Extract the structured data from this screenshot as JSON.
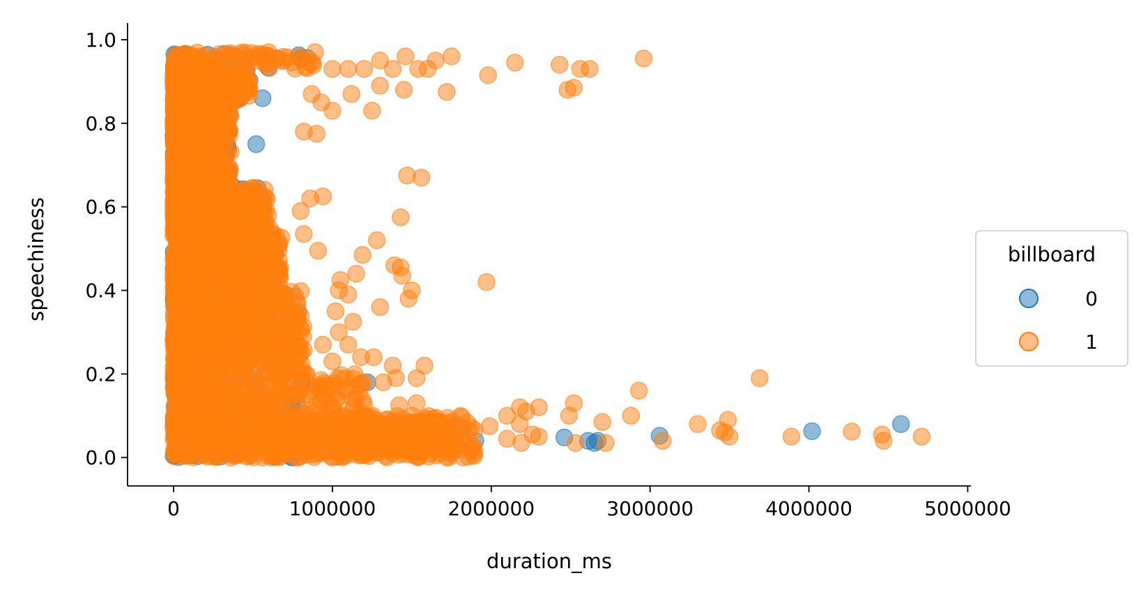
{
  "chart_data": {
    "type": "scatter",
    "title": "",
    "xlabel": "duration_ms",
    "ylabel": "speechiness",
    "xlim": [
      -290000,
      5020000
    ],
    "ylim": [
      -0.068,
      1.04
    ],
    "xticks": [
      0,
      1000000,
      2000000,
      3000000,
      4000000,
      5000000
    ],
    "xtick_labels": [
      "0",
      "1000000",
      "2000000",
      "3000000",
      "4000000",
      "5000000"
    ],
    "yticks": [
      0.0,
      0.2,
      0.4,
      0.6,
      0.8,
      1.0
    ],
    "ytick_labels": [
      "0.0",
      "0.2",
      "0.4",
      "0.6",
      "0.8",
      "1.0"
    ],
    "grid": false,
    "legend": {
      "title": "billboard",
      "placement": "center-right outside"
    },
    "marker_alpha": 0.5,
    "series": [
      {
        "name": "0",
        "color": "#1f77b4",
        "points": [
          [
            350000,
            0.96
          ],
          [
            650000,
            0.955
          ],
          [
            800000,
            0.955
          ],
          [
            520000,
            0.75
          ],
          [
            560000,
            0.86
          ],
          [
            1220000,
            0.18
          ],
          [
            1820000,
            0.07
          ],
          [
            1900000,
            0.04
          ],
          [
            2460000,
            0.048
          ],
          [
            2610000,
            0.04
          ],
          [
            2650000,
            0.035
          ],
          [
            2670000,
            0.04
          ],
          [
            3060000,
            0.052
          ],
          [
            4020000,
            0.063
          ],
          [
            4580000,
            0.08
          ]
        ],
        "dense_region": {
          "x_range": [
            0,
            850000
          ],
          "y_range": [
            0.0,
            0.97
          ]
        }
      },
      {
        "name": "1",
        "color": "#ff7f0e",
        "points": [
          [
            1000000,
            0.93
          ],
          [
            1100000,
            0.93
          ],
          [
            1200000,
            0.93
          ],
          [
            1300000,
            0.95
          ],
          [
            1380000,
            0.93
          ],
          [
            1460000,
            0.96
          ],
          [
            1540000,
            0.93
          ],
          [
            1600000,
            0.93
          ],
          [
            1650000,
            0.95
          ],
          [
            1750000,
            0.96
          ],
          [
            1720000,
            0.875
          ],
          [
            1980000,
            0.915
          ],
          [
            2150000,
            0.945
          ],
          [
            2430000,
            0.94
          ],
          [
            2480000,
            0.88
          ],
          [
            2520000,
            0.885
          ],
          [
            2560000,
            0.93
          ],
          [
            2620000,
            0.93
          ],
          [
            2960000,
            0.955
          ],
          [
            870000,
            0.87
          ],
          [
            930000,
            0.85
          ],
          [
            1000000,
            0.83
          ],
          [
            1120000,
            0.87
          ],
          [
            1250000,
            0.83
          ],
          [
            1300000,
            0.89
          ],
          [
            1450000,
            0.88
          ],
          [
            820000,
            0.78
          ],
          [
            900000,
            0.775
          ],
          [
            1470000,
            0.675
          ],
          [
            1560000,
            0.67
          ],
          [
            860000,
            0.62
          ],
          [
            940000,
            0.625
          ],
          [
            800000,
            0.59
          ],
          [
            1430000,
            0.575
          ],
          [
            820000,
            0.535
          ],
          [
            910000,
            0.495
          ],
          [
            1280000,
            0.52
          ],
          [
            1190000,
            0.485
          ],
          [
            1970000,
            0.42
          ],
          [
            1150000,
            0.44
          ],
          [
            1390000,
            0.46
          ],
          [
            1430000,
            0.455
          ],
          [
            1440000,
            0.435
          ],
          [
            1500000,
            0.4
          ],
          [
            1480000,
            0.38
          ],
          [
            1300000,
            0.36
          ],
          [
            1040000,
            0.4
          ],
          [
            1050000,
            0.425
          ],
          [
            1100000,
            0.39
          ],
          [
            1130000,
            0.325
          ],
          [
            1020000,
            0.35
          ],
          [
            1040000,
            0.3
          ],
          [
            1100000,
            0.27
          ],
          [
            940000,
            0.27
          ],
          [
            1000000,
            0.23
          ],
          [
            1180000,
            0.24
          ],
          [
            1260000,
            0.24
          ],
          [
            1380000,
            0.22
          ],
          [
            1580000,
            0.22
          ],
          [
            1400000,
            0.19
          ],
          [
            1530000,
            0.19
          ],
          [
            1200000,
            0.18
          ],
          [
            1320000,
            0.18
          ],
          [
            1530000,
            0.13
          ],
          [
            1420000,
            0.125
          ],
          [
            1680000,
            0.085
          ],
          [
            1740000,
            0.07
          ],
          [
            1990000,
            0.075
          ],
          [
            2100000,
            0.1
          ],
          [
            2180000,
            0.12
          ],
          [
            2220000,
            0.11
          ],
          [
            2300000,
            0.12
          ],
          [
            2180000,
            0.08
          ],
          [
            2260000,
            0.055
          ],
          [
            2300000,
            0.05
          ],
          [
            2100000,
            0.045
          ],
          [
            2190000,
            0.035
          ],
          [
            2520000,
            0.13
          ],
          [
            2490000,
            0.1
          ],
          [
            2700000,
            0.085
          ],
          [
            2880000,
            0.1
          ],
          [
            2930000,
            0.16
          ],
          [
            2530000,
            0.035
          ],
          [
            2720000,
            0.035
          ],
          [
            3080000,
            0.04
          ],
          [
            3300000,
            0.08
          ],
          [
            3440000,
            0.065
          ],
          [
            3470000,
            0.06
          ],
          [
            3490000,
            0.09
          ],
          [
            3500000,
            0.05
          ],
          [
            3690000,
            0.19
          ],
          [
            3890000,
            0.05
          ],
          [
            4270000,
            0.062
          ],
          [
            4460000,
            0.055
          ],
          [
            4470000,
            0.04
          ],
          [
            4710000,
            0.05
          ],
          [
            1720000,
            0.0
          ],
          [
            1000000,
            0.0
          ],
          [
            770000,
            0.0
          ],
          [
            360000,
            0.0
          ],
          [
            640000,
            0.003
          ]
        ],
        "dense_region": {
          "x_range": [
            0,
            900000
          ],
          "y_range": [
            0.0,
            0.97
          ]
        }
      }
    ]
  }
}
